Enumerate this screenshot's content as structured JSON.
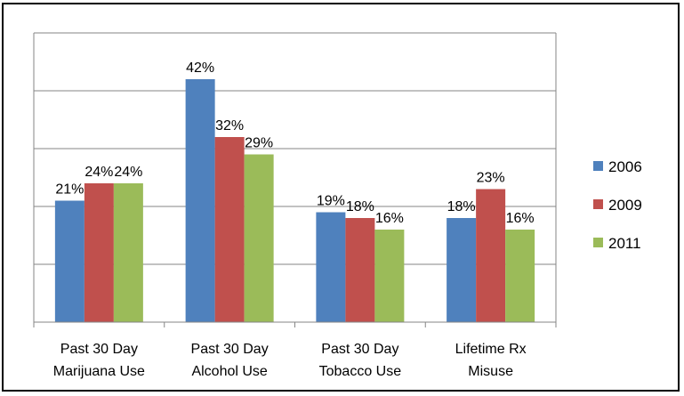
{
  "chart_data": {
    "type": "bar",
    "title": "",
    "xlabel": "",
    "ylabel": "",
    "ylim": [
      0,
      50
    ],
    "grid": true,
    "legend_position": "right",
    "categories": [
      [
        "Past 30 Day",
        "Marijuana Use"
      ],
      [
        "Past 30 Day",
        "Alcohol Use"
      ],
      [
        "Past 30 Day",
        "Tobacco Use"
      ],
      [
        "Lifetime Rx",
        "Misuse"
      ]
    ],
    "series": [
      {
        "name": "2006",
        "color": "#4f81bd",
        "values": [
          21,
          42,
          19,
          18
        ],
        "labels": [
          "21%",
          "42%",
          "19%",
          "18%"
        ]
      },
      {
        "name": "2009",
        "color": "#c0504d",
        "values": [
          24,
          32,
          18,
          23
        ],
        "labels": [
          "24%",
          "32%",
          "18%",
          "23%"
        ]
      },
      {
        "name": "2011",
        "color": "#9bbb59",
        "values": [
          24,
          29,
          16,
          16
        ],
        "labels": [
          "24%",
          "29%",
          "16%",
          "16%"
        ]
      }
    ]
  }
}
